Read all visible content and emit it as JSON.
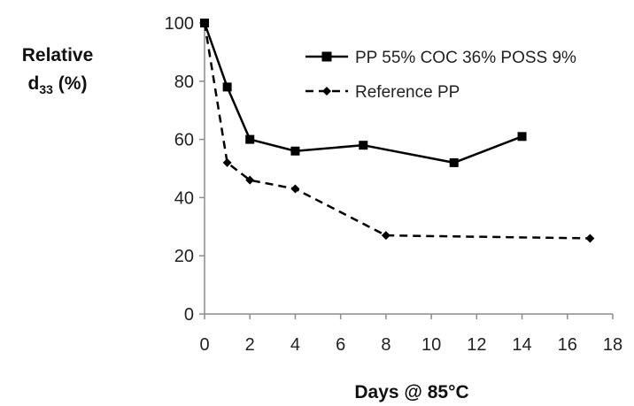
{
  "chart_data": {
    "type": "line",
    "title": "",
    "xlabel": "Days @ 85°C",
    "ylabel": {
      "line1": "Relative",
      "line2_main": "d",
      "line2_sub": "33",
      "line2_tail": " (%)"
    },
    "xlim": [
      0,
      18
    ],
    "ylim": [
      0,
      100
    ],
    "xticks": [
      0,
      2,
      4,
      6,
      8,
      10,
      12,
      14,
      16,
      18
    ],
    "yticks": [
      0,
      20,
      40,
      60,
      80,
      100
    ],
    "grid": false,
    "legend_position": "top-right",
    "series": [
      {
        "name": "PP 55% COC 36% POSS 9%",
        "style": "solid",
        "marker": "square",
        "color": "#000000",
        "x": [
          0,
          1,
          2,
          4,
          7,
          11,
          14
        ],
        "y": [
          100,
          78,
          60,
          56,
          58,
          52,
          61
        ]
      },
      {
        "name": "Reference PP",
        "style": "dashed",
        "marker": "diamond",
        "color": "#000000",
        "x": [
          0,
          1,
          2,
          4,
          8,
          17
        ],
        "y": [
          100,
          52,
          46,
          43,
          27,
          26
        ]
      }
    ]
  }
}
